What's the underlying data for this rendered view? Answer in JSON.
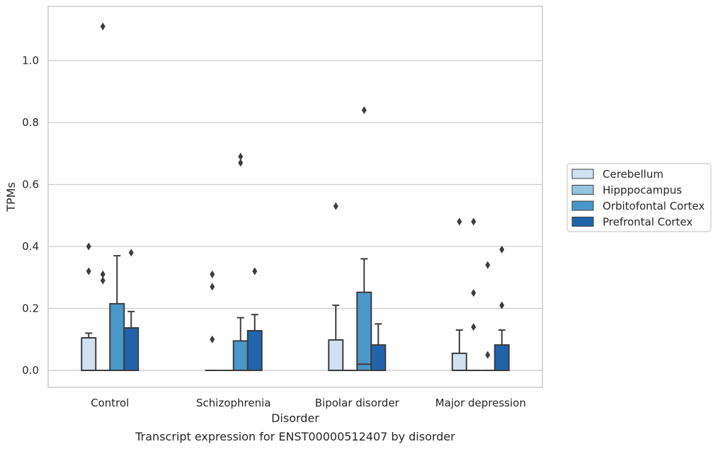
{
  "chart_data": {
    "type": "box",
    "title": "",
    "caption": "Transcript expression for ENST00000512407 by disorder",
    "xlabel": "Disorder",
    "ylabel": "TPMs",
    "ylim": [
      -0.055,
      1.175
    ],
    "yticks": [
      0.0,
      0.2,
      0.4,
      0.6,
      0.8,
      1.0
    ],
    "ytick_labels": [
      "0.0",
      "0.2",
      "0.4",
      "0.6",
      "0.8",
      "1.0"
    ],
    "grid": "horizontal",
    "legend_placement": "right",
    "categories": [
      "Control",
      "Schizophrenia",
      "Bipolar disorder",
      "Major depression"
    ],
    "series": [
      {
        "name": "Cerebellum",
        "color": "#d0e1f2",
        "boxes": [
          {
            "q1": 0.0,
            "median": 0.0,
            "q3": 0.105,
            "whisker_low": 0.0,
            "whisker_high": 0.12,
            "outliers": [
              0.32,
              0.4
            ]
          },
          {
            "q1": 0.0,
            "median": 0.0,
            "q3": 0.0,
            "whisker_low": 0.0,
            "whisker_high": 0.0,
            "outliers": [
              0.1,
              0.27,
              0.31
            ]
          },
          {
            "q1": 0.0,
            "median": 0.0,
            "q3": 0.098,
            "whisker_low": 0.0,
            "whisker_high": 0.21,
            "outliers": [
              0.53
            ]
          },
          {
            "q1": 0.0,
            "median": 0.0,
            "q3": 0.055,
            "whisker_low": 0.0,
            "whisker_high": 0.13,
            "outliers": [
              0.48
            ]
          }
        ]
      },
      {
        "name": "Hipppocampus",
        "color": "#94c4df",
        "boxes": [
          {
            "q1": 0.0,
            "median": 0.0,
            "q3": 0.0,
            "whisker_low": 0.0,
            "whisker_high": 0.0,
            "outliers": [
              0.29,
              0.31,
              1.11
            ]
          },
          {
            "q1": 0.0,
            "median": 0.0,
            "q3": 0.0,
            "whisker_low": 0.0,
            "whisker_high": 0.0,
            "outliers": []
          },
          {
            "q1": 0.0,
            "median": 0.0,
            "q3": 0.0,
            "whisker_low": 0.0,
            "whisker_high": 0.0,
            "outliers": []
          },
          {
            "q1": 0.0,
            "median": 0.0,
            "q3": 0.0,
            "whisker_low": 0.0,
            "whisker_high": 0.0,
            "outliers": [
              0.14,
              0.25,
              0.48
            ]
          }
        ]
      },
      {
        "name": "Orbitofontal Cortex",
        "color": "#4a98c9",
        "boxes": [
          {
            "q1": 0.0,
            "median": 0.0,
            "q3": 0.215,
            "whisker_low": 0.0,
            "whisker_high": 0.37,
            "outliers": []
          },
          {
            "q1": 0.0,
            "median": 0.0,
            "q3": 0.095,
            "whisker_low": 0.0,
            "whisker_high": 0.17,
            "outliers": [
              0.67,
              0.69
            ]
          },
          {
            "q1": 0.0,
            "median": 0.02,
            "q3": 0.252,
            "whisker_low": 0.0,
            "whisker_high": 0.36,
            "outliers": [
              0.84
            ]
          },
          {
            "q1": 0.0,
            "median": 0.0,
            "q3": 0.0,
            "whisker_low": 0.0,
            "whisker_high": 0.0,
            "outliers": [
              0.05,
              0.34
            ]
          }
        ]
      },
      {
        "name": "Prefrontal Cortex",
        "color": "#2164ab",
        "boxes": [
          {
            "q1": 0.0,
            "median": 0.0,
            "q3": 0.137,
            "whisker_low": 0.0,
            "whisker_high": 0.19,
            "outliers": [
              0.38
            ]
          },
          {
            "q1": 0.0,
            "median": 0.0,
            "q3": 0.128,
            "whisker_low": 0.0,
            "whisker_high": 0.18,
            "outliers": [
              0.32
            ]
          },
          {
            "q1": 0.0,
            "median": 0.0,
            "q3": 0.082,
            "whisker_low": 0.0,
            "whisker_high": 0.15,
            "outliers": []
          },
          {
            "q1": 0.0,
            "median": 0.0,
            "q3": 0.082,
            "whisker_low": 0.0,
            "whisker_high": 0.13,
            "outliers": [
              0.21,
              0.39
            ]
          }
        ]
      }
    ]
  },
  "colors": {
    "grid": "#cccccc",
    "spine": "#cccccc",
    "box_edge": "#3d3d3d"
  }
}
